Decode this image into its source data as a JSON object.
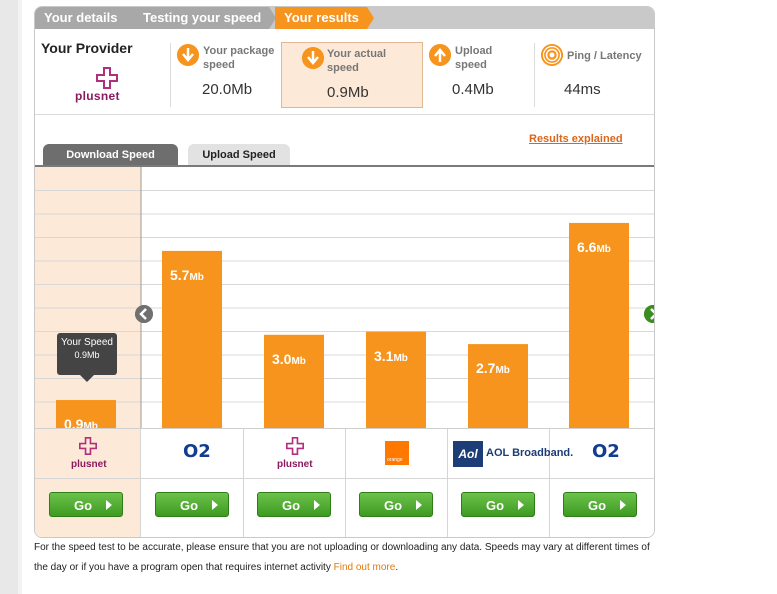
{
  "steps": [
    "Your details",
    "Testing your speed",
    "Your results"
  ],
  "provider": {
    "title": "Your Provider",
    "name": "plusnet"
  },
  "metrics": [
    {
      "label": "Your package speed",
      "value": "20.0Mb",
      "icon": "arrow-down-icon"
    },
    {
      "label": "Your actual speed",
      "value": "0.9Mb",
      "icon": "arrow-down-icon"
    },
    {
      "label": "Upload speed",
      "value": "0.4Mb",
      "icon": "arrow-up-icon"
    },
    {
      "label": "Ping / Latency",
      "value": "44ms",
      "icon": "signal-icon"
    }
  ],
  "results_link": "Results explained",
  "tabs": {
    "download": "Download Speed",
    "upload": "Upload Speed"
  },
  "tooltip": {
    "title": "Your Speed",
    "value": "0.9Mb"
  },
  "chart_data": {
    "type": "bar",
    "title": "Download Speed",
    "unit": "Mb",
    "categories": [
      "plusnet",
      "O2",
      "plusnet",
      "orange",
      "AOL Broadband.",
      "O2"
    ],
    "values": [
      0.9,
      5.7,
      3.0,
      3.1,
      2.7,
      6.6
    ],
    "labels": [
      "0.9",
      "5.7",
      "3.0",
      "3.1",
      "2.7",
      "6.6"
    ],
    "ylim": [
      0,
      8.4
    ],
    "grid": true,
    "bar_color": "#f7941d"
  },
  "providers": [
    {
      "name": "plusnet",
      "logo": "plusnet-logo"
    },
    {
      "name": "O2",
      "logo": "o2-logo"
    },
    {
      "name": "plusnet",
      "logo": "plusnet-logo"
    },
    {
      "name": "orange",
      "logo": "orange-logo"
    },
    {
      "name": "AOL Broadband.",
      "logo": "aol-logo",
      "badge": "Aol"
    },
    {
      "name": "O2",
      "logo": "o2-logo"
    }
  ],
  "go_label": "Go",
  "footnote": {
    "text": "For the speed test to be accurate, please ensure that you are not uploading or downloading any data. Speeds may vary at different times of the day or if you have a program open that requires internet activity",
    "link": "Find out more",
    "end": "."
  },
  "colors": {
    "accent": "#f7941d",
    "highlight": "#fde9d7",
    "go": "#4aa82b",
    "step_inactive": "#a8a8a8"
  }
}
